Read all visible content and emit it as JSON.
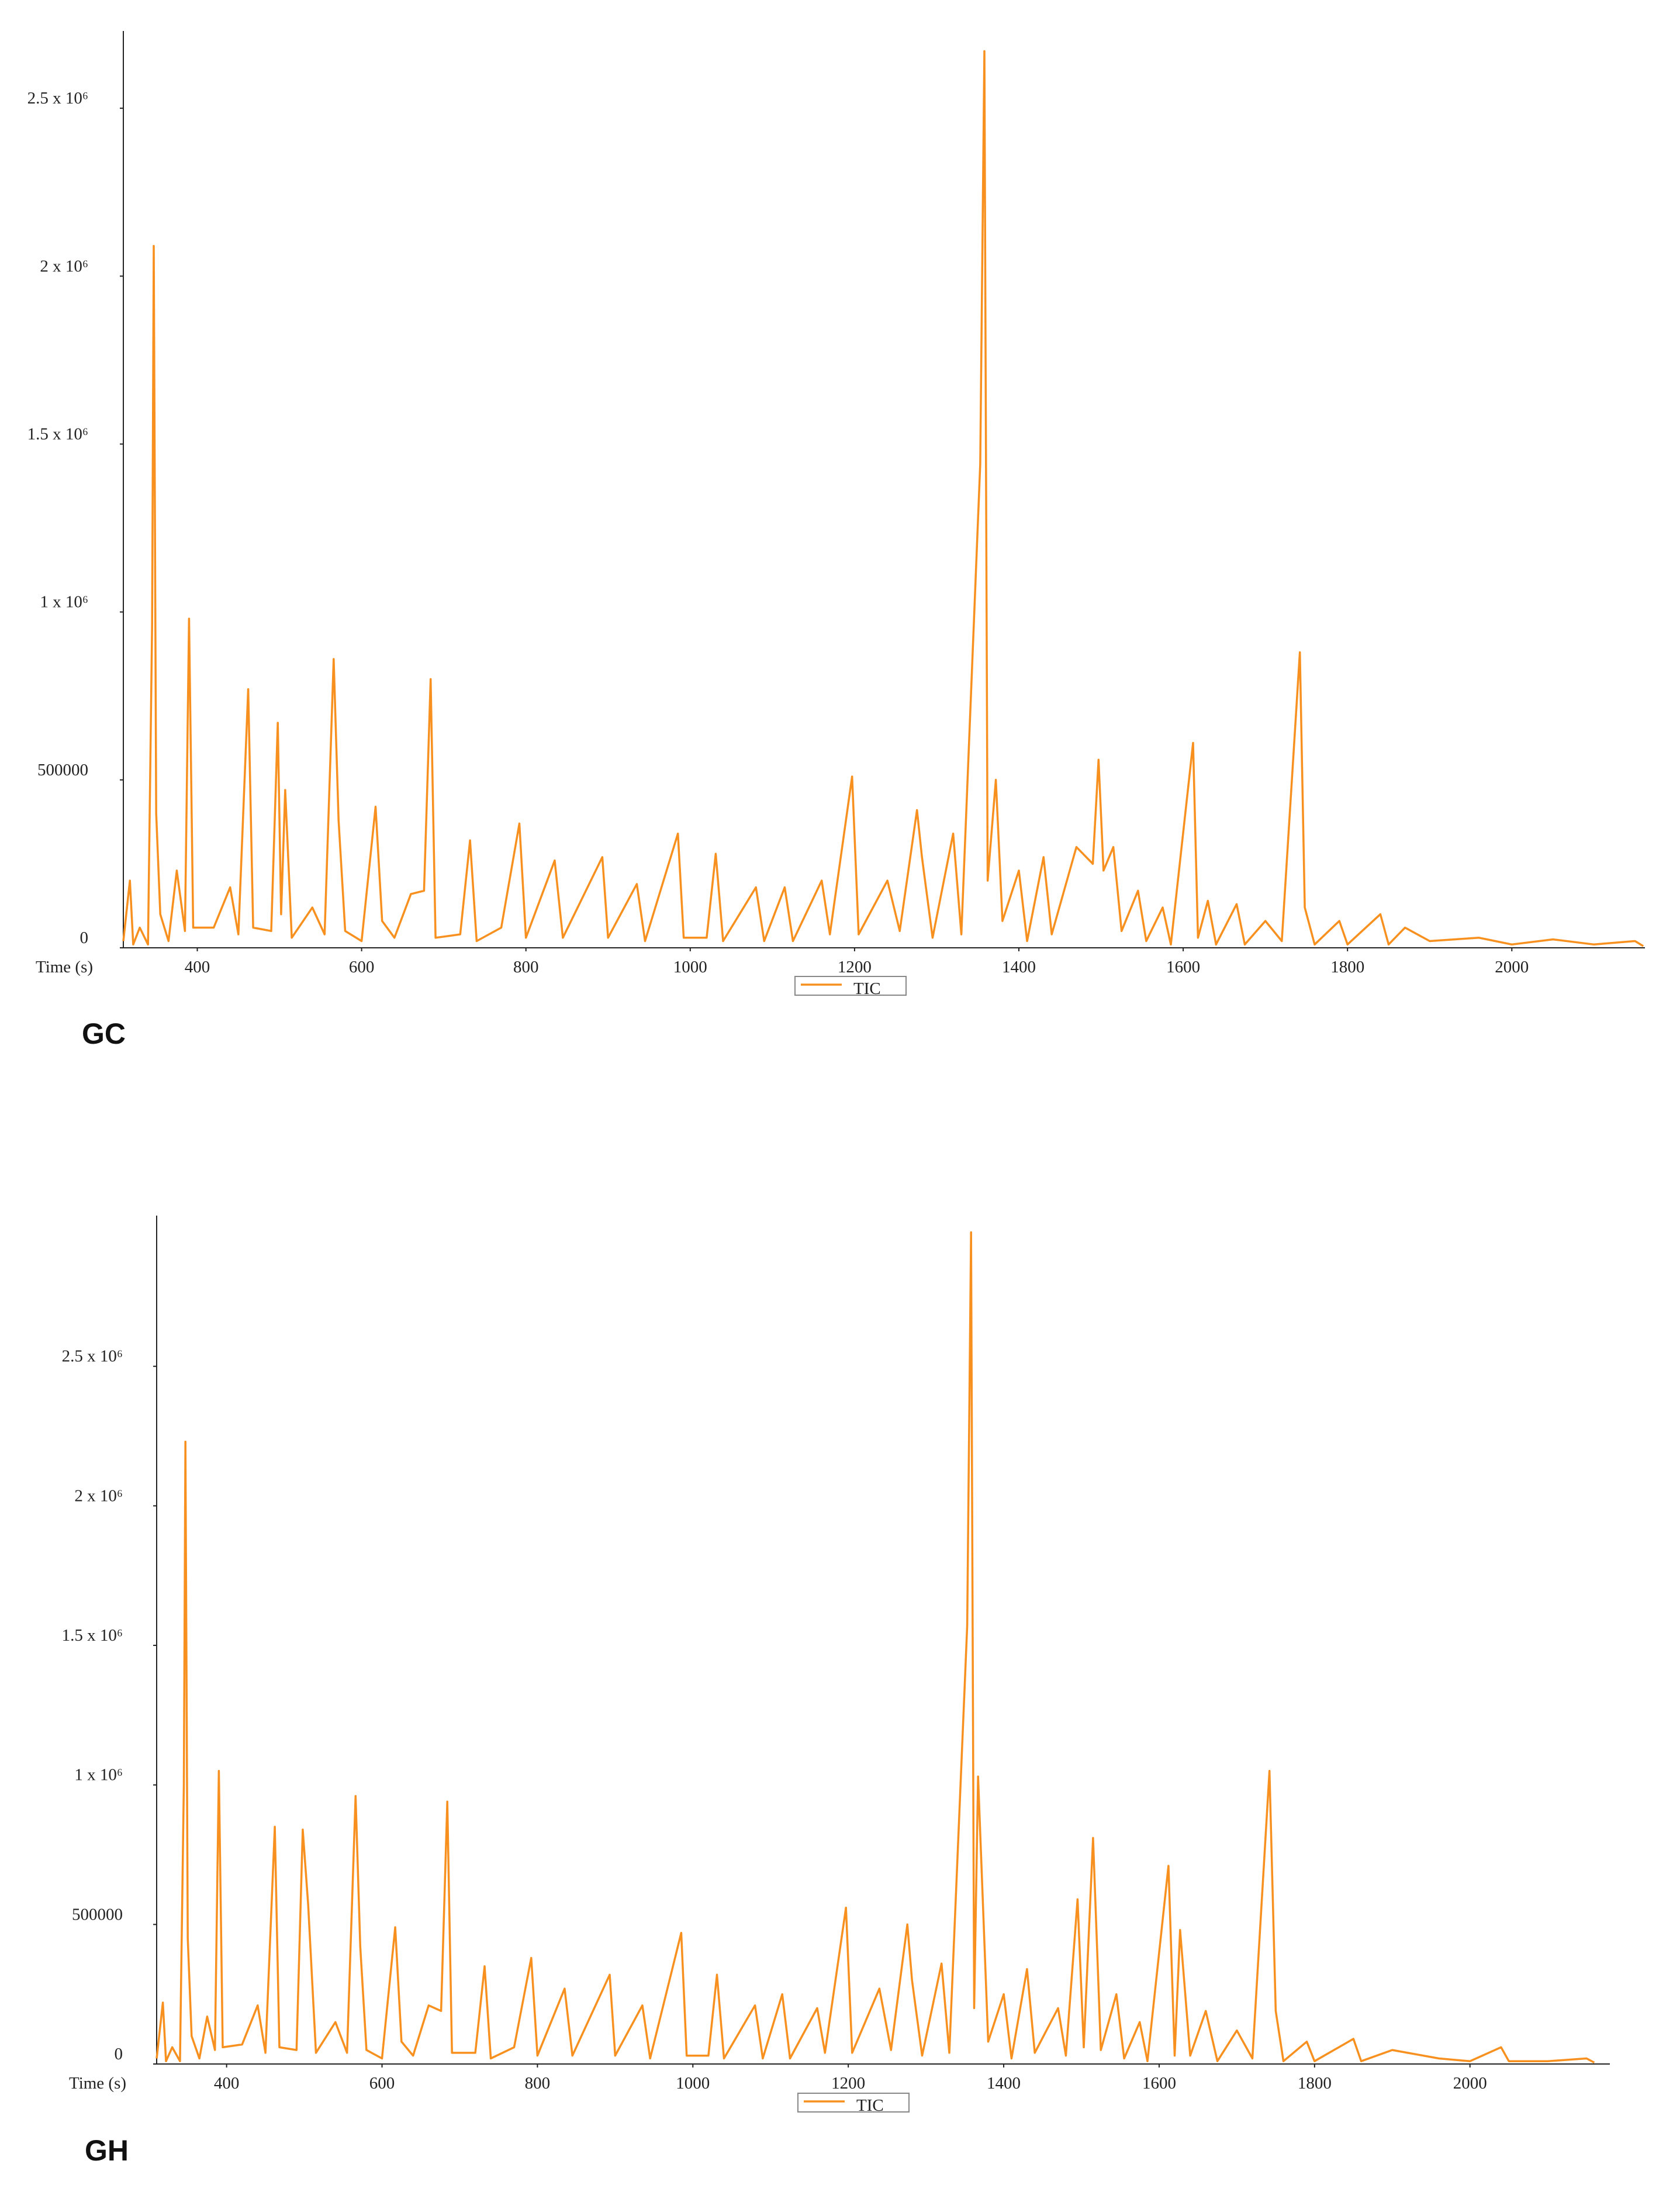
{
  "chart_data": [
    {
      "type": "line",
      "panel_label": "GC",
      "x_label": "Time (s)",
      "x": [
        310,
        318,
        322,
        330,
        340,
        345,
        347,
        350,
        355,
        365,
        375,
        385,
        390,
        395,
        420,
        440,
        450,
        462,
        468,
        490,
        498,
        502,
        507,
        515,
        540,
        555,
        566,
        572,
        580,
        600,
        617,
        625,
        640,
        660,
        676,
        684,
        690,
        720,
        732,
        740,
        770,
        792,
        800,
        835,
        845,
        893,
        900,
        935,
        945,
        985,
        992,
        1020,
        1031,
        1040,
        1080,
        1090,
        1115,
        1125,
        1160,
        1170,
        1197,
        1205,
        1240,
        1255,
        1276,
        1282,
        1295,
        1320,
        1330,
        1353,
        1358,
        1362,
        1372,
        1380,
        1400,
        1410,
        1430,
        1440,
        1470,
        1490,
        1497,
        1503,
        1515,
        1525,
        1545,
        1555,
        1575,
        1585,
        1612,
        1618,
        1630,
        1640,
        1665,
        1675,
        1700,
        1720,
        1742,
        1748,
        1760,
        1790,
        1800,
        1840,
        1850,
        1870,
        1900,
        1960,
        2000,
        2050,
        2100,
        2150,
        2160
      ],
      "series": [
        {
          "name": "TIC",
          "color": "#f7901e",
          "values": [
            20000,
            200000,
            10000,
            60000,
            10000,
            960000,
            2090000,
            400000,
            100000,
            20000,
            230000,
            50000,
            980000,
            60000,
            60000,
            180000,
            40000,
            770000,
            60000,
            50000,
            670000,
            100000,
            470000,
            30000,
            120000,
            40000,
            860000,
            380000,
            50000,
            20000,
            420000,
            80000,
            30000,
            160000,
            170000,
            800000,
            30000,
            40000,
            320000,
            20000,
            60000,
            370000,
            30000,
            260000,
            30000,
            270000,
            30000,
            190000,
            20000,
            340000,
            30000,
            30000,
            280000,
            20000,
            180000,
            20000,
            180000,
            20000,
            200000,
            40000,
            510000,
            40000,
            200000,
            50000,
            410000,
            270000,
            30000,
            340000,
            40000,
            1440000,
            2670000,
            200000,
            500000,
            80000,
            230000,
            20000,
            270000,
            40000,
            300000,
            250000,
            560000,
            230000,
            300000,
            50000,
            170000,
            20000,
            120000,
            10000,
            610000,
            30000,
            140000,
            10000,
            130000,
            10000,
            80000,
            20000,
            880000,
            120000,
            10000,
            80000,
            10000,
            100000,
            10000,
            60000,
            20000,
            30000,
            10000,
            25000,
            10000,
            20000,
            5000
          ]
        }
      ],
      "xlim": [
        310,
        2162
      ],
      "ylim": [
        0,
        2730000
      ],
      "xticks": [
        400,
        600,
        800,
        1000,
        1200,
        1400,
        1600,
        1800,
        2000
      ],
      "yticks": [
        0,
        500000,
        {
          "value": 1000000,
          "label": "1 x 10⁶"
        },
        {
          "value": 1500000,
          "label": "1.5 x 10⁶"
        },
        {
          "value": 2000000,
          "label": "2 x 10⁶"
        },
        {
          "value": 2500000,
          "label": "2.5 x 10⁶"
        }
      ],
      "grid": false
    },
    {
      "type": "line",
      "panel_label": "GH",
      "x_label": "Time (s)",
      "x": [
        310,
        318,
        322,
        330,
        340,
        345,
        347,
        350,
        355,
        365,
        375,
        385,
        390,
        395,
        420,
        440,
        450,
        462,
        468,
        490,
        498,
        505,
        515,
        540,
        555,
        566,
        572,
        580,
        600,
        617,
        625,
        640,
        660,
        676,
        684,
        690,
        720,
        732,
        740,
        770,
        792,
        800,
        835,
        845,
        893,
        900,
        935,
        945,
        985,
        992,
        1020,
        1031,
        1040,
        1080,
        1090,
        1115,
        1125,
        1160,
        1170,
        1197,
        1205,
        1240,
        1255,
        1276,
        1282,
        1295,
        1320,
        1330,
        1353,
        1358,
        1362,
        1367,
        1380,
        1400,
        1410,
        1430,
        1440,
        1470,
        1480,
        1495,
        1503,
        1515,
        1525,
        1545,
        1555,
        1575,
        1585,
        1612,
        1620,
        1627,
        1640,
        1660,
        1675,
        1700,
        1720,
        1742,
        1750,
        1760,
        1790,
        1800,
        1850,
        1860,
        1900,
        1960,
        2000,
        2040,
        2050,
        2100,
        2150,
        2160
      ],
      "series": [
        {
          "name": "TIC",
          "color": "#f7901e",
          "values": [
            20000,
            220000,
            10000,
            60000,
            10000,
            1000000,
            2230000,
            450000,
            100000,
            20000,
            170000,
            50000,
            1050000,
            60000,
            70000,
            210000,
            40000,
            850000,
            60000,
            50000,
            840000,
            570000,
            40000,
            150000,
            40000,
            960000,
            420000,
            50000,
            20000,
            490000,
            80000,
            30000,
            210000,
            190000,
            940000,
            40000,
            40000,
            350000,
            20000,
            60000,
            380000,
            30000,
            270000,
            30000,
            320000,
            30000,
            210000,
            20000,
            470000,
            30000,
            30000,
            320000,
            20000,
            210000,
            20000,
            250000,
            20000,
            200000,
            40000,
            560000,
            40000,
            270000,
            50000,
            500000,
            300000,
            30000,
            360000,
            40000,
            1570000,
            2980000,
            200000,
            1030000,
            80000,
            250000,
            20000,
            340000,
            40000,
            200000,
            30000,
            590000,
            60000,
            810000,
            50000,
            250000,
            20000,
            150000,
            10000,
            710000,
            30000,
            480000,
            30000,
            190000,
            10000,
            120000,
            20000,
            1050000,
            190000,
            10000,
            80000,
            10000,
            90000,
            10000,
            50000,
            20000,
            10000,
            60000,
            10000,
            10000,
            20000,
            5000
          ]
        }
      ],
      "xlim": [
        310,
        2180
      ],
      "ylim": [
        0,
        3040000
      ],
      "xticks": [
        400,
        600,
        800,
        1000,
        1200,
        1400,
        1600,
        1800,
        2000
      ],
      "yticks": [
        0,
        500000,
        {
          "value": 1000000,
          "label": "1 x 10⁶"
        },
        {
          "value": 1500000,
          "label": "1.5 x 10⁶"
        },
        {
          "value": 2000000,
          "label": "2 x 10⁶"
        },
        {
          "value": 2500000,
          "label": "2.5 x 10⁶"
        }
      ],
      "grid": false
    }
  ]
}
